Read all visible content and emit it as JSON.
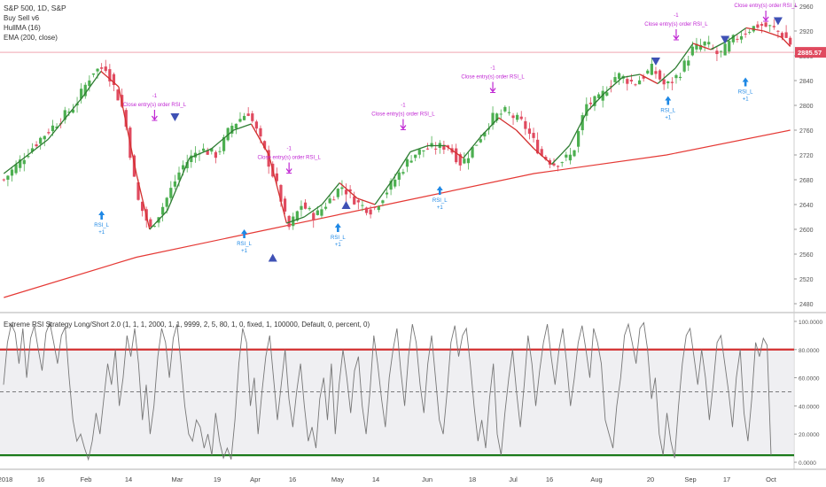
{
  "header": {
    "symbol": "S&P 500, 1D, S&P",
    "indicators": [
      "Buy Sell v6",
      "HullMA (16)",
      "EMA (200, close)"
    ]
  },
  "last_price_label": "2885.57",
  "oscillator_title": "Extreme RSI Strategy Long/Short 2.0 (1, 1, 1, 2000, 1, 1, 9999, 2, 5, 80, 1, 0, fixed, 1, 100000, Default, 0, percent, 0)",
  "colors": {
    "up": "#4caf50",
    "down": "#e04a5f",
    "ema": "#e53935",
    "hull_up": "#2e7d32",
    "hull_down": "#d32f2f",
    "signal_magenta": "#c026d3",
    "signal_blue": "#1e88e5",
    "triangle": "#3f51b5",
    "osc_line": "#777777",
    "osc_upper": "#d32f2f",
    "osc_lower": "#1b7a1b",
    "price_tag": "#e04a5f"
  },
  "chart_data": {
    "type": "candlestick",
    "price_axis": {
      "ticks": [
        2480,
        2520,
        2560,
        2600,
        2640,
        2680,
        2720,
        2760,
        2800,
        2840,
        2880,
        2920,
        2960
      ],
      "ylim": [
        2470,
        2970
      ]
    },
    "x_ticks": [
      "2018",
      "16",
      "Feb",
      "14",
      "Mar",
      "19",
      "Apr",
      "16",
      "May",
      "14",
      "Jun",
      "18",
      "Jul",
      "16",
      "Aug",
      "20",
      "Sep",
      "17",
      "Oct"
    ],
    "close_anchors": [
      [
        0,
        2680
      ],
      [
        8,
        2745
      ],
      [
        16,
        2800
      ],
      [
        20,
        2855
      ],
      [
        23,
        2862
      ],
      [
        27,
        2790
      ],
      [
        30,
        2650
      ],
      [
        33,
        2600
      ],
      [
        36,
        2640
      ],
      [
        40,
        2700
      ],
      [
        44,
        2730
      ],
      [
        48,
        2720
      ],
      [
        51,
        2765
      ],
      [
        55,
        2790
      ],
      [
        58,
        2740
      ],
      [
        62,
        2660
      ],
      [
        64,
        2600
      ],
      [
        67,
        2640
      ],
      [
        70,
        2620
      ],
      [
        73,
        2645
      ],
      [
        76,
        2670
      ],
      [
        80,
        2640
      ],
      [
        83,
        2630
      ],
      [
        86,
        2660
      ],
      [
        89,
        2690
      ],
      [
        92,
        2720
      ],
      [
        95,
        2730
      ],
      [
        100,
        2735
      ],
      [
        103,
        2705
      ],
      [
        106,
        2735
      ],
      [
        110,
        2780
      ],
      [
        113,
        2790
      ],
      [
        117,
        2770
      ],
      [
        121,
        2720
      ],
      [
        124,
        2705
      ],
      [
        128,
        2720
      ],
      [
        131,
        2800
      ],
      [
        134,
        2810
      ],
      [
        138,
        2850
      ],
      [
        142,
        2835
      ],
      [
        146,
        2860
      ],
      [
        149,
        2830
      ],
      [
        152,
        2850
      ],
      [
        155,
        2890
      ],
      [
        158,
        2900
      ],
      [
        161,
        2880
      ],
      [
        164,
        2905
      ],
      [
        167,
        2920
      ],
      [
        170,
        2930
      ],
      [
        173,
        2925
      ],
      [
        176,
        2910
      ],
      [
        178,
        2890
      ]
    ],
    "ema_200": [
      [
        0,
        2490
      ],
      [
        30,
        2555
      ],
      [
        60,
        2600
      ],
      [
        90,
        2645
      ],
      [
        120,
        2690
      ],
      [
        150,
        2720
      ],
      [
        178,
        2760
      ]
    ],
    "hull_ma": [
      [
        0,
        2690
      ],
      [
        10,
        2745
      ],
      [
        18,
        2815
      ],
      [
        22,
        2855
      ],
      [
        26,
        2830
      ],
      [
        30,
        2690
      ],
      [
        33,
        2600
      ],
      [
        37,
        2630
      ],
      [
        42,
        2715
      ],
      [
        47,
        2730
      ],
      [
        52,
        2760
      ],
      [
        56,
        2770
      ],
      [
        60,
        2720
      ],
      [
        64,
        2610
      ],
      [
        68,
        2620
      ],
      [
        72,
        2640
      ],
      [
        76,
        2675
      ],
      [
        80,
        2650
      ],
      [
        84,
        2640
      ],
      [
        88,
        2680
      ],
      [
        92,
        2725
      ],
      [
        96,
        2735
      ],
      [
        100,
        2735
      ],
      [
        104,
        2715
      ],
      [
        108,
        2750
      ],
      [
        112,
        2780
      ],
      [
        116,
        2760
      ],
      [
        120,
        2730
      ],
      [
        124,
        2705
      ],
      [
        128,
        2735
      ],
      [
        132,
        2790
      ],
      [
        136,
        2820
      ],
      [
        140,
        2845
      ],
      [
        144,
        2850
      ],
      [
        148,
        2835
      ],
      [
        152,
        2860
      ],
      [
        156,
        2900
      ],
      [
        160,
        2890
      ],
      [
        164,
        2905
      ],
      [
        168,
        2925
      ],
      [
        172,
        2920
      ],
      [
        176,
        2910
      ],
      [
        178,
        2895
      ]
    ],
    "signals": [
      {
        "type": "exit",
        "bar": 37,
        "price": 2770,
        "label": "Close entry(s) order RSI_L",
        "qty": "-1"
      },
      {
        "type": "exit",
        "bar": 70,
        "price": 2685,
        "label": "Close entry(s) order RSI_L",
        "qty": "-1"
      },
      {
        "type": "exit",
        "bar": 98,
        "price": 2755,
        "label": "Close entry(s) order RSI_L",
        "qty": "-1"
      },
      {
        "type": "exit",
        "bar": 120,
        "price": 2815,
        "label": "Close entry(s) order RSI_L",
        "qty": "-1"
      },
      {
        "type": "exit",
        "bar": 165,
        "price": 2900,
        "label": "Close entry(s) order RSI_L",
        "qty": "-1"
      },
      {
        "type": "exit",
        "bar": 187,
        "price": 2930,
        "label": "Close entry(s) order RSI_L",
        "qty": "-1"
      },
      {
        "type": "entry",
        "bar": 24,
        "price": 2630,
        "label": "RSI_L",
        "qty": "+1"
      },
      {
        "type": "entry",
        "bar": 59,
        "price": 2600,
        "label": "RSI_L",
        "qty": "+1"
      },
      {
        "type": "entry",
        "bar": 82,
        "price": 2610,
        "label": "RSI_L",
        "qty": "+1"
      },
      {
        "type": "entry",
        "bar": 107,
        "price": 2670,
        "label": "RSI_L",
        "qty": "+1"
      },
      {
        "type": "entry",
        "bar": 163,
        "price": 2815,
        "label": "RSI_L",
        "qty": "+1"
      },
      {
        "type": "entry",
        "bar": 182,
        "price": 2845,
        "label": "RSI_L",
        "qty": "+1"
      }
    ],
    "triangles": [
      {
        "dir": "down",
        "bar": 42,
        "price": 2780
      },
      {
        "dir": "up",
        "bar": 66,
        "price": 2555
      },
      {
        "dir": "up",
        "bar": 84,
        "price": 2640
      },
      {
        "dir": "down",
        "bar": 160,
        "price": 2870
      },
      {
        "dir": "down",
        "bar": 177,
        "price": 2905
      },
      {
        "dir": "down",
        "bar": 190,
        "price": 2935
      }
    ],
    "oscillator": {
      "ticks": [
        0,
        20,
        40,
        60,
        80,
        100
      ],
      "tick_labels": [
        "0.0000",
        "20.0000",
        "40.0000",
        "60.0000",
        "80.0000",
        "100.0000"
      ],
      "upper": 80,
      "lower": 5,
      "mid": 50,
      "ylim": [
        -5,
        105
      ],
      "values": [
        55,
        85,
        98,
        92,
        70,
        95,
        60,
        88,
        97,
        80,
        65,
        92,
        99,
        85,
        70,
        90,
        96,
        60,
        30,
        15,
        20,
        10,
        2,
        15,
        35,
        20,
        45,
        70,
        55,
        80,
        40,
        60,
        90,
        75,
        95,
        70,
        30,
        55,
        20,
        40,
        75,
        95,
        85,
        60,
        88,
        98,
        70,
        40,
        20,
        15,
        30,
        25,
        10,
        20,
        5,
        35,
        15,
        3,
        10,
        2,
        30,
        70,
        95,
        85,
        40,
        60,
        20,
        50,
        75,
        90,
        60,
        30,
        55,
        80,
        45,
        25,
        50,
        70,
        40,
        15,
        25,
        10,
        45,
        60,
        30,
        70,
        20,
        55,
        80,
        60,
        35,
        65,
        75,
        40,
        20,
        50,
        90,
        70,
        45,
        25,
        60,
        80,
        95,
        65,
        40,
        75,
        98,
        85,
        55,
        35,
        70,
        90,
        60,
        30,
        20,
        50,
        85,
        97,
        75,
        90,
        95,
        70,
        40,
        15,
        30,
        10,
        45,
        70,
        20,
        5,
        35,
        60,
        80,
        50,
        25,
        55,
        90,
        70,
        40,
        65,
        85,
        98,
        75,
        55,
        80,
        95,
        70,
        40,
        60,
        85,
        97,
        80,
        60,
        95,
        85,
        70,
        30,
        20,
        10,
        40,
        60,
        90,
        98,
        85,
        70,
        95,
        99,
        80,
        45,
        60,
        20,
        5,
        35,
        15,
        3,
        40,
        70,
        90,
        95,
        75,
        55,
        80,
        60,
        30,
        55,
        85,
        90,
        70,
        50,
        25,
        60,
        80,
        35,
        15,
        45,
        85,
        75,
        88,
        83,
        5
      ]
    }
  }
}
